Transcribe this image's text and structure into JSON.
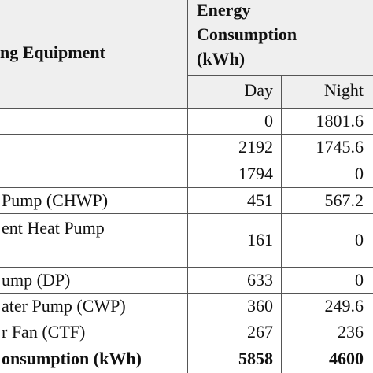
{
  "header": {
    "equipment": "ng Equipment",
    "energy": [
      "Energy",
      "Consumption",
      "(kWh)"
    ],
    "day": "Day",
    "night": "Night"
  },
  "table": {
    "rows": [
      {
        "day": 0,
        "night": 1801.6
      },
      {
        "day": 2192,
        "night": 1745.6
      },
      {
        "day": 1794,
        "night": 0
      },
      {
        "label": "Pump (CHWP)",
        "day": 451,
        "night": 567.2
      },
      {
        "label": "ent Heat Pump",
        "day": 161,
        "night": 0
      },
      {
        "label": "ump (DP)",
        "day": 633,
        "night": 0
      },
      {
        "label": "ater Pump (CWP)",
        "day": 360,
        "night": 249.6
      },
      {
        "label": "r Fan (CTF)",
        "day": 267,
        "night": 236
      },
      {
        "label": "onsumption (kWh)",
        "day": 5858,
        "night": 4600,
        "bold": true
      }
    ]
  }
}
